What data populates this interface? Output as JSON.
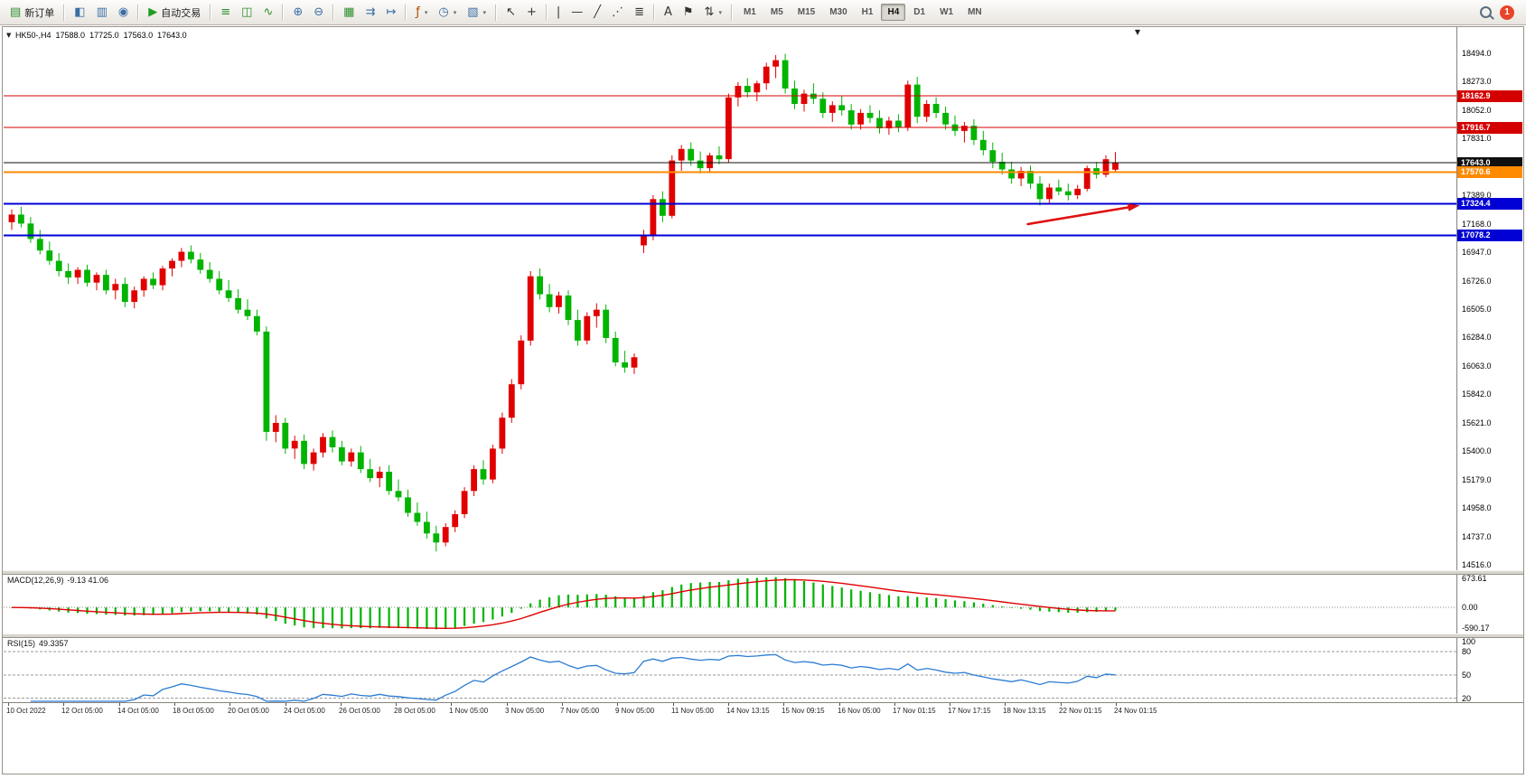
{
  "toolbar": {
    "dropdown_glyph": "▾",
    "badge_count": "1",
    "groups": [
      {
        "items": [
          {
            "name": "new-order-button",
            "glyph": "▤",
            "glyph_color": "#2a8f2a",
            "label": "新订单"
          }
        ]
      },
      {
        "items": [
          {
            "name": "charts-window-button",
            "glyph": "◧",
            "glyph_color": "#3a6ea5"
          },
          {
            "name": "profiles-button",
            "glyph": "▥",
            "glyph_color": "#3a6ea5"
          },
          {
            "name": "data-window-button",
            "glyph": "◉",
            "glyph_color": "#3a6ea5"
          }
        ]
      },
      {
        "items": [
          {
            "name": "autotrade-button",
            "glyph": "▶",
            "glyph_color": "#1f9d1f",
            "label": "自动交易"
          }
        ]
      },
      {
        "items": [
          {
            "name": "bar-chart-button",
            "glyph": "≡",
            "glyph_color": "#2a8f2a"
          },
          {
            "name": "candlestick-chart-button",
            "glyph": "◫",
            "glyph_color": "#2a8f2a"
          },
          {
            "name": "line-chart-button",
            "glyph": "∿",
            "glyph_color": "#2a8f2a"
          }
        ]
      },
      {
        "items": [
          {
            "name": "zoom-in-button",
            "glyph": "⊕",
            "glyph_color": "#3a6ea5"
          },
          {
            "name": "zoom-out-button",
            "glyph": "⊖",
            "glyph_color": "#3a6ea5"
          }
        ]
      },
      {
        "items": [
          {
            "name": "tile-windows-button",
            "glyph": "▦",
            "glyph_color": "#2a8f2a"
          },
          {
            "name": "auto-scroll-button",
            "glyph": "⇉",
            "glyph_color": "#3a6ea5"
          },
          {
            "name": "chart-shift-button",
            "glyph": "↦",
            "glyph_color": "#3a6ea5"
          }
        ]
      },
      {
        "items": [
          {
            "name": "indicators-button",
            "glyph": "ƒ",
            "glyph_color": "#b04a00",
            "dropdown": true
          },
          {
            "name": "periods-button",
            "glyph": "◷",
            "glyph_color": "#3a6ea5",
            "dropdown": true
          },
          {
            "name": "templates-button",
            "glyph": "▧",
            "glyph_color": "#3a6ea5",
            "dropdown": true
          }
        ]
      },
      {
        "items": [
          {
            "name": "cursor-button",
            "glyph": "↖",
            "glyph_color": "#333333"
          },
          {
            "name": "crosshair-button",
            "glyph": "+",
            "glyph_color": "#333333"
          }
        ]
      },
      {
        "items": [
          {
            "name": "vertical-line-button",
            "glyph": "|",
            "glyph_color": "#333333"
          },
          {
            "name": "horizontal-line-button",
            "glyph": "—",
            "glyph_color": "#333333"
          },
          {
            "name": "trendline-button",
            "glyph": "╱",
            "glyph_color": "#333333"
          },
          {
            "name": "channel-button",
            "glyph": "⋰",
            "glyph_color": "#333333"
          },
          {
            "name": "fibonacci-button",
            "glyph": "≣",
            "glyph_color": "#333333"
          }
        ]
      },
      {
        "items": [
          {
            "name": "text-button",
            "glyph": "A",
            "glyph_color": "#333333"
          },
          {
            "name": "label-button",
            "glyph": "⚑",
            "glyph_color": "#333333"
          },
          {
            "name": "arrows-button",
            "glyph": "⇅",
            "glyph_color": "#333333",
            "dropdown": true
          }
        ]
      }
    ],
    "timeframes": {
      "items": [
        "M1",
        "M5",
        "M15",
        "M30",
        "H1",
        "H4",
        "D1",
        "W1",
        "MN"
      ],
      "active": "H4"
    }
  },
  "chart": {
    "symbol_tf": "HK50-,H4",
    "open": "17588.0",
    "high": "17725.0",
    "low": "17563.0",
    "close": "17643.0",
    "collapse_glyph": "▼",
    "shift_glyph": "▼"
  },
  "chart_data": {
    "type": "candlestick",
    "title": "HK50-,H4",
    "up_color": "#e00000",
    "down_color": "#00b400",
    "ylim": [
      14474,
      18697
    ],
    "y_axis_labels": [
      {
        "v": 18494,
        "t": "18494.0"
      },
      {
        "v": 18273,
        "t": "18273.0"
      },
      {
        "v": 18052,
        "t": "18052.0"
      },
      {
        "v": 17831,
        "t": "17831.0"
      },
      {
        "v": 17389,
        "t": "17389.0"
      },
      {
        "v": 17168,
        "t": "17168.0"
      },
      {
        "v": 16947,
        "t": "16947.0"
      },
      {
        "v": 16726,
        "t": "16726.0"
      },
      {
        "v": 16505,
        "t": "16505.0"
      },
      {
        "v": 16284,
        "t": "16284.0"
      },
      {
        "v": 16063,
        "t": "16063.0"
      },
      {
        "v": 15842,
        "t": "15842.0"
      },
      {
        "v": 15621,
        "t": "15621.0"
      },
      {
        "v": 15400,
        "t": "15400.0"
      },
      {
        "v": 15179,
        "t": "15179.0"
      },
      {
        "v": 14958,
        "t": "14958.0"
      },
      {
        "v": 14737,
        "t": "14737.0"
      },
      {
        "v": 14516,
        "t": "14516.0"
      }
    ],
    "hlines": [
      {
        "v": 18162.9,
        "t": "18162.9",
        "color": "#d40000",
        "w": 1
      },
      {
        "v": 17916.7,
        "t": "17916.7",
        "color": "#d40000",
        "w": 1
      },
      {
        "v": 17643.0,
        "t": "17643.0",
        "color": "#101010",
        "w": 1
      },
      {
        "v": 17570.6,
        "t": "17570.6",
        "color": "#ff8a00",
        "w": 2
      },
      {
        "v": 17324.4,
        "t": "17324.4",
        "color": "#0000d4",
        "w": 2
      },
      {
        "v": 17078.2,
        "t": "17078.2",
        "color": "#0000d4",
        "w": 2
      }
    ],
    "arrow": {
      "x1f": 0.705,
      "p1": 17165,
      "x2f": 0.782,
      "p2": 17310,
      "color": "#e01010"
    },
    "x_labels": [
      "10 Oct 2022",
      "12 Oct 05:00",
      "14 Oct 05:00",
      "18 Oct 05:00",
      "20 Oct 05:00",
      "24 Oct 05:00",
      "26 Oct 05:00",
      "28 Oct 05:00",
      "1 Nov 05:00",
      "3 Nov 05:00",
      "7 Nov 05:00",
      "9 Nov 05:00",
      "11 Nov 05:00",
      "14 Nov 13:15",
      "15 Nov 09:15",
      "16 Nov 05:00",
      "17 Nov 01:15",
      "17 Nov 17:15",
      "18 Nov 13:15",
      "22 Nov 01:15",
      "24 Nov 01:15"
    ],
    "candles": [
      [
        17180,
        17280,
        17120,
        17240
      ],
      [
        17240,
        17300,
        17140,
        17170
      ],
      [
        17170,
        17220,
        17020,
        17050
      ],
      [
        17050,
        17120,
        16930,
        16960
      ],
      [
        16960,
        17030,
        16850,
        16880
      ],
      [
        16880,
        16940,
        16760,
        16800
      ],
      [
        16800,
        16860,
        16700,
        16750
      ],
      [
        16750,
        16830,
        16700,
        16810
      ],
      [
        16810,
        16850,
        16680,
        16710
      ],
      [
        16710,
        16790,
        16650,
        16770
      ],
      [
        16770,
        16810,
        16620,
        16650
      ],
      [
        16650,
        16740,
        16580,
        16700
      ],
      [
        16700,
        16750,
        16520,
        16560
      ],
      [
        16560,
        16680,
        16510,
        16650
      ],
      [
        16650,
        16760,
        16600,
        16740
      ],
      [
        16740,
        16790,
        16660,
        16690
      ],
      [
        16690,
        16840,
        16650,
        16820
      ],
      [
        16820,
        16900,
        16760,
        16880
      ],
      [
        16880,
        16980,
        16830,
        16950
      ],
      [
        16950,
        17000,
        16860,
        16890
      ],
      [
        16890,
        16940,
        16780,
        16810
      ],
      [
        16810,
        16870,
        16710,
        16740
      ],
      [
        16740,
        16800,
        16620,
        16650
      ],
      [
        16650,
        16730,
        16560,
        16590
      ],
      [
        16590,
        16660,
        16470,
        16500
      ],
      [
        16500,
        16580,
        16420,
        16450
      ],
      [
        16450,
        16500,
        16300,
        16330
      ],
      [
        16330,
        16370,
        15480,
        15550
      ],
      [
        15550,
        15680,
        15470,
        15620
      ],
      [
        15620,
        15660,
        15380,
        15420
      ],
      [
        15420,
        15520,
        15340,
        15480
      ],
      [
        15480,
        15530,
        15260,
        15300
      ],
      [
        15300,
        15420,
        15250,
        15390
      ],
      [
        15390,
        15540,
        15350,
        15510
      ],
      [
        15510,
        15560,
        15390,
        15430
      ],
      [
        15430,
        15480,
        15290,
        15320
      ],
      [
        15320,
        15420,
        15280,
        15390
      ],
      [
        15390,
        15440,
        15230,
        15260
      ],
      [
        15260,
        15340,
        15160,
        15190
      ],
      [
        15190,
        15280,
        15120,
        15240
      ],
      [
        15240,
        15290,
        15060,
        15090
      ],
      [
        15090,
        15180,
        15010,
        15040
      ],
      [
        15040,
        15100,
        14890,
        14920
      ],
      [
        14920,
        15000,
        14820,
        14850
      ],
      [
        14850,
        14930,
        14720,
        14760
      ],
      [
        14760,
        14820,
        14620,
        14690
      ],
      [
        14690,
        14840,
        14660,
        14810
      ],
      [
        14810,
        14940,
        14770,
        14910
      ],
      [
        14910,
        15120,
        14880,
        15090
      ],
      [
        15090,
        15290,
        15050,
        15260
      ],
      [
        15260,
        15330,
        15140,
        15180
      ],
      [
        15180,
        15450,
        15150,
        15420
      ],
      [
        15420,
        15700,
        15380,
        15660
      ],
      [
        15660,
        15960,
        15620,
        15920
      ],
      [
        15920,
        16300,
        15880,
        16260
      ],
      [
        16260,
        16800,
        16220,
        16760
      ],
      [
        16760,
        16820,
        16580,
        16620
      ],
      [
        16620,
        16700,
        16480,
        16520
      ],
      [
        16520,
        16640,
        16470,
        16610
      ],
      [
        16610,
        16650,
        16380,
        16420
      ],
      [
        16420,
        16500,
        16220,
        16260
      ],
      [
        16260,
        16480,
        16230,
        16450
      ],
      [
        16450,
        16550,
        16360,
        16500
      ],
      [
        16500,
        16540,
        16240,
        16280
      ],
      [
        16280,
        16330,
        16060,
        16090
      ],
      [
        16090,
        16180,
        16010,
        16050
      ],
      [
        16050,
        16160,
        16000,
        16130
      ],
      [
        17000,
        17120,
        16940,
        17080
      ],
      [
        17080,
        17390,
        17040,
        17360
      ],
      [
        17360,
        17420,
        17180,
        17230
      ],
      [
        17230,
        17700,
        17210,
        17660
      ],
      [
        17660,
        17780,
        17580,
        17750
      ],
      [
        17750,
        17800,
        17620,
        17660
      ],
      [
        17660,
        17730,
        17560,
        17600
      ],
      [
        17600,
        17720,
        17570,
        17700
      ],
      [
        17700,
        17770,
        17630,
        17670
      ],
      [
        17670,
        18180,
        17640,
        18150
      ],
      [
        18150,
        18270,
        18080,
        18240
      ],
      [
        18240,
        18300,
        18150,
        18190
      ],
      [
        18190,
        18280,
        18120,
        18260
      ],
      [
        18260,
        18420,
        18210,
        18390
      ],
      [
        18390,
        18480,
        18300,
        18440
      ],
      [
        18440,
        18490,
        18180,
        18220
      ],
      [
        18220,
        18280,
        18060,
        18100
      ],
      [
        18100,
        18210,
        18040,
        18180
      ],
      [
        18180,
        18260,
        18100,
        18140
      ],
      [
        18140,
        18190,
        17990,
        18030
      ],
      [
        18030,
        18120,
        17960,
        18090
      ],
      [
        18090,
        18160,
        18010,
        18050
      ],
      [
        18050,
        18100,
        17900,
        17940
      ],
      [
        17940,
        18060,
        17900,
        18030
      ],
      [
        18030,
        18090,
        17950,
        17990
      ],
      [
        17990,
        18050,
        17870,
        17910
      ],
      [
        17910,
        18000,
        17860,
        17970
      ],
      [
        17970,
        18020,
        17880,
        17920
      ],
      [
        17920,
        18280,
        17890,
        18250
      ],
      [
        18250,
        18310,
        17950,
        18000
      ],
      [
        18000,
        18130,
        17960,
        18100
      ],
      [
        18100,
        18150,
        17990,
        18030
      ],
      [
        18030,
        18080,
        17900,
        17940
      ],
      [
        17940,
        18010,
        17850,
        17890
      ],
      [
        17890,
        17960,
        17800,
        17930
      ],
      [
        17930,
        17980,
        17780,
        17820
      ],
      [
        17820,
        17890,
        17700,
        17740
      ],
      [
        17740,
        17800,
        17600,
        17650
      ],
      [
        17650,
        17720,
        17550,
        17590
      ],
      [
        17590,
        17650,
        17480,
        17520
      ],
      [
        17520,
        17610,
        17460,
        17580
      ],
      [
        17580,
        17620,
        17440,
        17480
      ],
      [
        17480,
        17540,
        17310,
        17360
      ],
      [
        17360,
        17480,
        17330,
        17450
      ],
      [
        17450,
        17510,
        17390,
        17420
      ],
      [
        17420,
        17480,
        17350,
        17390
      ],
      [
        17390,
        17470,
        17360,
        17440
      ],
      [
        17440,
        17620,
        17420,
        17600
      ],
      [
        17600,
        17650,
        17520,
        17550
      ],
      [
        17550,
        17700,
        17530,
        17670
      ],
      [
        17588,
        17725,
        17563,
        17643
      ]
    ],
    "macd": {
      "title": "MACD(12,26,9)",
      "values": "-9.13 41.06",
      "fast": 12,
      "slow": 26,
      "signal": 9,
      "histogram_color": "#00b400",
      "signal_color": "#e00000",
      "axis": [
        "673.61",
        "0.00",
        "-590.17"
      ]
    },
    "rsi": {
      "title": "RSI(15)",
      "value": "49.3357",
      "period": 15,
      "line_color": "#2b7cd3",
      "range": [
        15,
        100
      ],
      "levels": [
        80,
        50,
        20
      ],
      "axis": [
        {
          "v": 100,
          "t": "100"
        },
        {
          "v": 80,
          "t": "80"
        },
        {
          "v": 50,
          "t": "50"
        },
        {
          "v": 20,
          "t": "20"
        }
      ]
    }
  }
}
